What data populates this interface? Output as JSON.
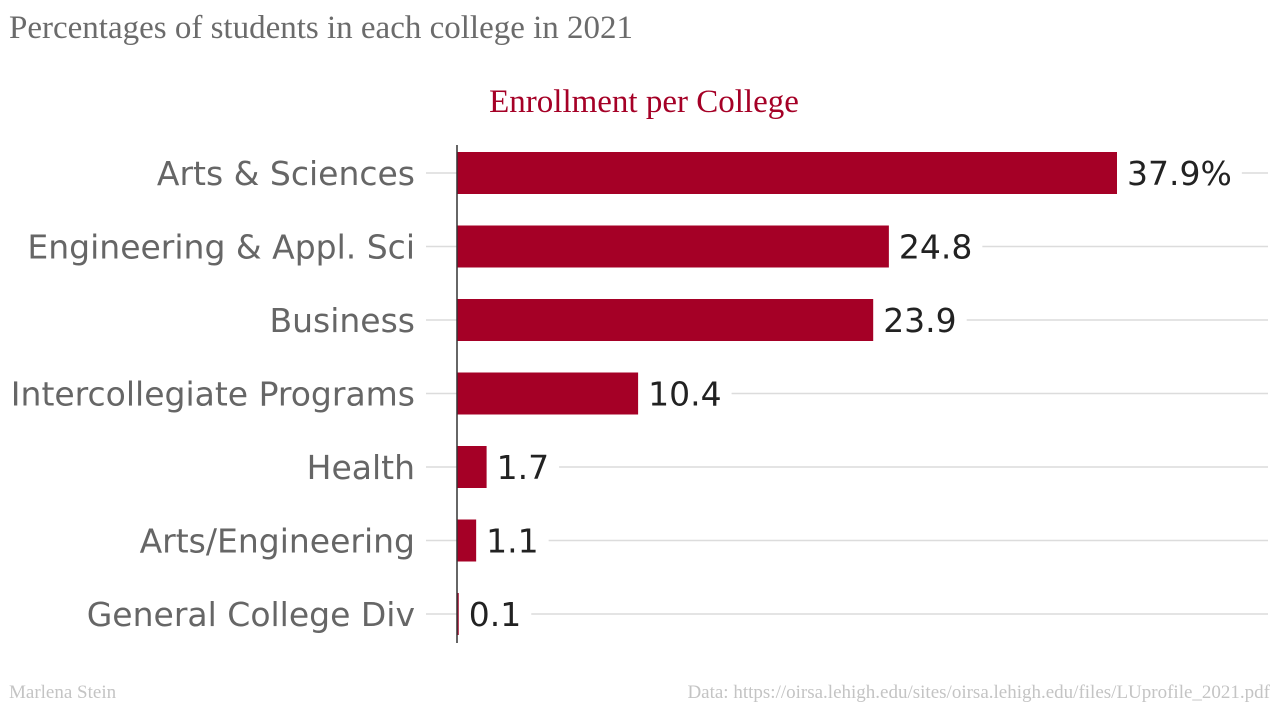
{
  "header": {
    "title": "Percentages of students in each college in 2021"
  },
  "footer": {
    "author": "Marlena Stein",
    "source": "Data: https://oirsa.lehigh.edu/sites/oirsa.lehigh.edu/files/LUprofile_2021.pdf"
  },
  "colors": {
    "bar": "#a50026",
    "chart_title": "#a50026",
    "gridline": "#dcdcdc",
    "axis": "#333333",
    "category_label": "#666666",
    "value_label": "#222222"
  },
  "chart_data": {
    "type": "bar",
    "orientation": "horizontal",
    "title": "Enrollment per College",
    "xlabel": "",
    "ylabel": "",
    "unit": "%",
    "grid": true,
    "categories": [
      "Arts & Sciences",
      "Engineering & Appl. Sci",
      "Business",
      "Intercollegiate Programs",
      "Health",
      "Arts/Engineering",
      "General College Div"
    ],
    "values": [
      37.9,
      24.8,
      23.9,
      10.4,
      1.7,
      1.1,
      0.1
    ],
    "value_labels": [
      "37.9%",
      "24.8",
      "23.9",
      "10.4",
      "1.7",
      "1.1",
      "0.1"
    ],
    "xlim": [
      0,
      37.9
    ]
  }
}
